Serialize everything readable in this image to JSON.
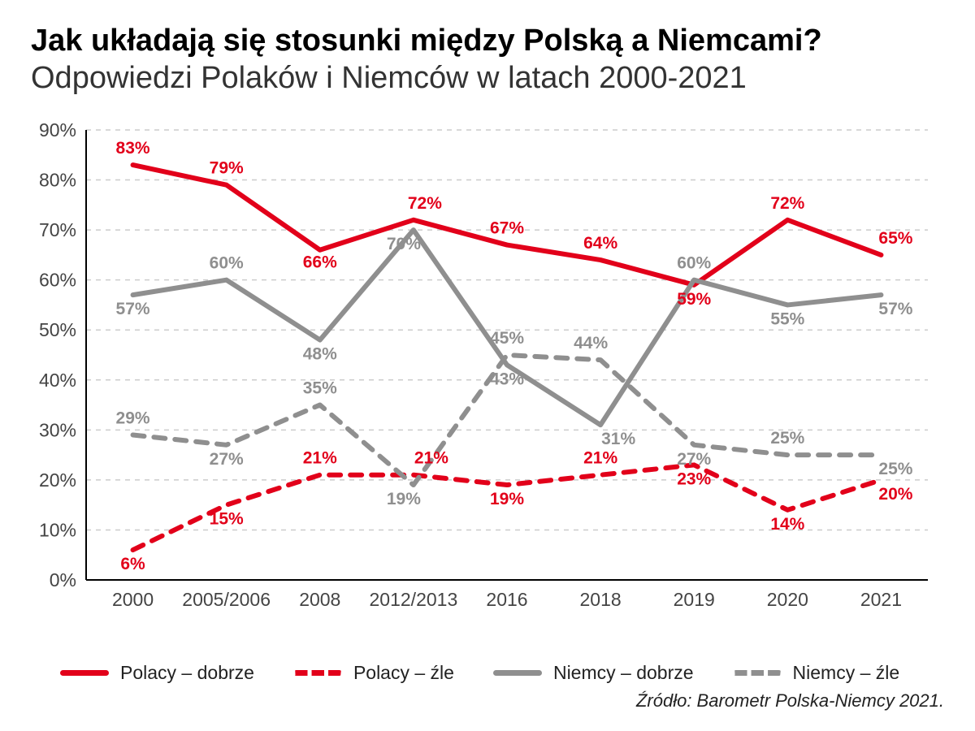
{
  "title": "Jak układają się stosunki między Polską a Niemcami?",
  "subtitle": "Odpowiedzi Polaków i Niemców w latach 2000-2021",
  "source": "Źródło: Barometr Polska-Niemcy 2021.",
  "chart": {
    "type": "line",
    "categories": [
      "2000",
      "2005/2006",
      "2008",
      "2012/2013",
      "2016",
      "2018",
      "2019",
      "2020",
      "2021"
    ],
    "ylim": [
      0,
      90
    ],
    "ytick_step": 10,
    "y_suffix": "%",
    "grid_color": "#cccccc",
    "grid_dasharray": "6 6",
    "axis_color": "#000000",
    "background_color": "#ffffff",
    "tick_font_size": 23,
    "tick_color": "#444444",
    "line_width": 6,
    "dash_pattern": "14 12",
    "label_font_size": 21,
    "label_font_weight": "bold",
    "series": [
      {
        "key": "polacy_dobrze",
        "label": "Polacy – dobrze",
        "color": "#e2001a",
        "dashed": false,
        "values": [
          83,
          79,
          66,
          72,
          67,
          64,
          59,
          72,
          65
        ],
        "label_dy": [
          -14,
          -14,
          22,
          -14,
          -14,
          -14,
          24,
          -14,
          -14
        ],
        "label_dx": [
          0,
          0,
          0,
          14,
          0,
          0,
          0,
          0,
          18
        ]
      },
      {
        "key": "polacy_zle",
        "label": "Polacy – źle",
        "color": "#e2001a",
        "dashed": true,
        "values": [
          6,
          15,
          21,
          21,
          19,
          21,
          23,
          14,
          20
        ],
        "label_dy": [
          24,
          24,
          -14,
          -14,
          24,
          -14,
          24,
          24,
          24
        ],
        "label_dx": [
          0,
          0,
          0,
          22,
          0,
          0,
          0,
          0,
          18
        ]
      },
      {
        "key": "niemcy_dobrze",
        "label": "Niemcy – dobrze",
        "color": "#8f8f8f",
        "dashed": false,
        "values": [
          57,
          60,
          48,
          70,
          43,
          31,
          60,
          55,
          57
        ],
        "label_dy": [
          24,
          -14,
          24,
          24,
          24,
          24,
          -14,
          24,
          24
        ],
        "label_dx": [
          0,
          0,
          0,
          -12,
          0,
          22,
          0,
          0,
          18
        ]
      },
      {
        "key": "niemcy_zle",
        "label": "Niemcy – źle",
        "color": "#8f8f8f",
        "dashed": true,
        "values": [
          29,
          27,
          35,
          19,
          45,
          44,
          27,
          25,
          25
        ],
        "label_dy": [
          -14,
          24,
          -14,
          24,
          -14,
          -14,
          24,
          -14,
          24
        ],
        "label_dx": [
          0,
          0,
          0,
          -12,
          0,
          -12,
          0,
          0,
          18
        ]
      }
    ]
  },
  "legend": [
    {
      "key": "polacy_dobrze"
    },
    {
      "key": "polacy_zle"
    },
    {
      "key": "niemcy_dobrze"
    },
    {
      "key": "niemcy_zle"
    }
  ]
}
